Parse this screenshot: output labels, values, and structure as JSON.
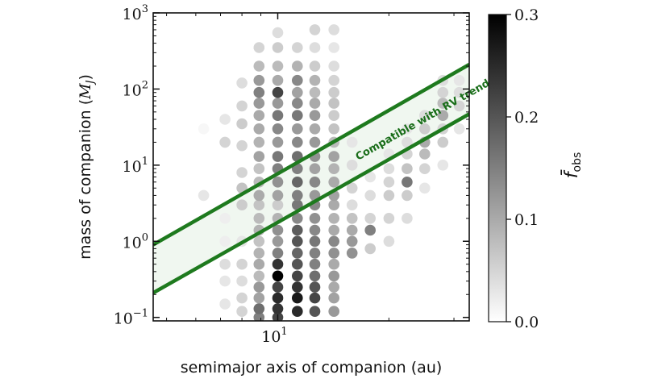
{
  "chart_data": {
    "type": "scatter",
    "title": "",
    "xlabel": "semimajor axis of companion (au)",
    "ylabel_text": "mass of companion (",
    "ylabel_symbol": "M",
    "ylabel_sub": "J",
    "ylabel_close": ")",
    "xscale": "log",
    "yscale": "log",
    "xlim": [
      4.6,
      33
    ],
    "ylim": [
      0.09,
      1000
    ],
    "x_ticks": [
      {
        "value": 10,
        "base": "10",
        "exp": "1"
      }
    ],
    "y_ticks": [
      {
        "value": 0.1,
        "base": "10",
        "exp": "−1"
      },
      {
        "value": 1,
        "base": "10",
        "exp": "0"
      },
      {
        "value": 10,
        "base": "10",
        "exp": "1"
      },
      {
        "value": 100,
        "base": "10",
        "exp": "2"
      },
      {
        "value": 1000,
        "base": "10",
        "exp": "3"
      }
    ],
    "colorbar": {
      "label": "f̄",
      "label_sub": "obs",
      "range": [
        0.0,
        0.3
      ],
      "ticks": [
        "0.0",
        "0.1",
        "0.2",
        "0.3"
      ],
      "colors": [
        "#ffffff",
        "#000000"
      ]
    },
    "annotation": {
      "text": "Compatible with RV trend",
      "color": "#1a6e1a",
      "anchor_x": 16.5,
      "anchor_y": 11.5
    },
    "band": {
      "color": "#1e7a1e",
      "lower_line": [
        [
          4.6,
          0.21
        ],
        [
          33,
          47
        ]
      ],
      "upper_line": [
        [
          4.6,
          0.9
        ],
        [
          33,
          210
        ]
      ]
    },
    "columns": [
      {
        "x": 6.3,
        "values": [
          [
            30,
            0.01
          ],
          [
            4,
            0.03
          ]
        ]
      },
      {
        "x": 7.2,
        "values": [
          [
            0.15,
            0.03
          ],
          [
            0.3,
            0.03
          ],
          [
            0.5,
            0.04
          ],
          [
            1,
            0.02
          ],
          [
            2,
            0.02
          ],
          [
            20,
            0.05
          ],
          [
            40,
            0.03
          ]
        ]
      },
      {
        "x": 8.0,
        "values": [
          [
            0.12,
            0.05
          ],
          [
            0.18,
            0.05
          ],
          [
            0.3,
            0.04
          ],
          [
            0.5,
            0.05
          ],
          [
            1,
            0.03
          ],
          [
            3,
            0.06
          ],
          [
            5,
            0.07
          ],
          [
            8,
            0.05
          ],
          [
            18,
            0.05
          ],
          [
            35,
            0.06
          ],
          [
            60,
            0.05
          ],
          [
            120,
            0.04
          ]
        ]
      },
      {
        "x": 8.9,
        "values": [
          [
            0.1,
            0.15
          ],
          [
            0.13,
            0.17
          ],
          [
            0.18,
            0.11
          ],
          [
            0.25,
            0.12
          ],
          [
            0.35,
            0.08
          ],
          [
            0.5,
            0.1
          ],
          [
            0.7,
            0.09
          ],
          [
            1,
            0.07
          ],
          [
            1.4,
            0.09
          ],
          [
            2,
            0.08
          ],
          [
            3,
            0.07
          ],
          [
            4,
            0.1
          ],
          [
            6,
            0.08
          ],
          [
            9,
            0.07
          ],
          [
            13,
            0.11
          ],
          [
            20,
            0.09
          ],
          [
            30,
            0.1
          ],
          [
            45,
            0.1
          ],
          [
            65,
            0.12
          ],
          [
            90,
            0.15
          ],
          [
            130,
            0.12
          ],
          [
            200,
            0.08
          ],
          [
            350,
            0.05
          ]
        ]
      },
      {
        "x": 10.0,
        "values": [
          [
            0.1,
            0.22
          ],
          [
            0.13,
            0.24
          ],
          [
            0.18,
            0.25
          ],
          [
            0.25,
            0.22
          ],
          [
            0.35,
            0.3
          ],
          [
            0.5,
            0.24
          ],
          [
            0.7,
            0.15
          ],
          [
            1,
            0.12
          ],
          [
            1.4,
            0.13
          ],
          [
            2,
            0.09
          ],
          [
            3,
            0.06
          ],
          [
            4,
            0.11
          ],
          [
            6,
            0.13
          ],
          [
            9,
            0.15
          ],
          [
            13,
            0.16
          ],
          [
            20,
            0.12
          ],
          [
            30,
            0.14
          ],
          [
            45,
            0.16
          ],
          [
            65,
            0.12
          ],
          [
            90,
            0.22
          ],
          [
            130,
            0.1
          ],
          [
            200,
            0.08
          ],
          [
            350,
            0.06
          ],
          [
            550,
            0.04
          ]
        ]
      },
      {
        "x": 11.3,
        "values": [
          [
            0.12,
            0.25
          ],
          [
            0.18,
            0.27
          ],
          [
            0.25,
            0.24
          ],
          [
            0.35,
            0.22
          ],
          [
            0.5,
            0.2
          ],
          [
            0.7,
            0.18
          ],
          [
            1,
            0.2
          ],
          [
            1.4,
            0.19
          ],
          [
            2,
            0.14
          ],
          [
            3,
            0.16
          ],
          [
            4,
            0.15
          ],
          [
            6,
            0.18
          ],
          [
            9,
            0.15
          ],
          [
            13,
            0.17
          ],
          [
            20,
            0.14
          ],
          [
            30,
            0.12
          ],
          [
            45,
            0.16
          ],
          [
            65,
            0.14
          ],
          [
            90,
            0.11
          ],
          [
            130,
            0.14
          ],
          [
            200,
            0.09
          ],
          [
            350,
            0.05
          ]
        ]
      },
      {
        "x": 12.6,
        "values": [
          [
            0.12,
            0.2
          ],
          [
            0.18,
            0.22
          ],
          [
            0.25,
            0.2
          ],
          [
            0.35,
            0.17
          ],
          [
            0.5,
            0.15
          ],
          [
            0.7,
            0.15
          ],
          [
            1,
            0.16
          ],
          [
            1.4,
            0.14
          ],
          [
            2,
            0.13
          ],
          [
            3,
            0.14
          ],
          [
            4,
            0.12
          ],
          [
            6,
            0.14
          ],
          [
            9,
            0.11
          ],
          [
            13,
            0.13
          ],
          [
            20,
            0.12
          ],
          [
            30,
            0.1
          ],
          [
            45,
            0.12
          ],
          [
            65,
            0.1
          ],
          [
            90,
            0.08
          ],
          [
            130,
            0.09
          ],
          [
            200,
            0.06
          ],
          [
            350,
            0.04
          ],
          [
            600,
            0.05
          ]
        ]
      },
      {
        "x": 14.2,
        "values": [
          [
            0.12,
            0.12
          ],
          [
            0.18,
            0.11
          ],
          [
            0.25,
            0.1
          ],
          [
            0.35,
            0.12
          ],
          [
            0.5,
            0.1
          ],
          [
            0.7,
            0.13
          ],
          [
            1,
            0.14
          ],
          [
            1.4,
            0.1
          ],
          [
            2,
            0.09
          ],
          [
            3,
            0.1
          ],
          [
            4,
            0.11
          ],
          [
            6,
            0.1
          ],
          [
            9,
            0.09
          ],
          [
            13,
            0.11
          ],
          [
            20,
            0.08
          ],
          [
            30,
            0.07
          ],
          [
            45,
            0.06
          ],
          [
            65,
            0.07
          ],
          [
            90,
            0.06
          ],
          [
            130,
            0.05
          ],
          [
            200,
            0.04
          ],
          [
            350,
            0.03
          ],
          [
            600,
            0.04
          ]
        ]
      },
      {
        "x": 15.9,
        "values": [
          [
            0.7,
            0.13
          ],
          [
            1,
            0.12
          ],
          [
            1.4,
            0.1
          ],
          [
            2,
            0.07
          ],
          [
            3,
            0.04
          ],
          [
            5,
            0.05
          ],
          [
            10,
            0.04
          ],
          [
            20,
            0.03
          ]
        ]
      },
      {
        "x": 17.8,
        "values": [
          [
            0.8,
            0.06
          ],
          [
            1.4,
            0.15
          ],
          [
            2,
            0.05
          ],
          [
            4,
            0.04
          ],
          [
            7,
            0.03
          ]
        ]
      },
      {
        "x": 20.0,
        "values": [
          [
            1,
            0.04
          ],
          [
            2,
            0.05
          ],
          [
            4,
            0.06
          ],
          [
            6,
            0.05
          ],
          [
            9,
            0.04
          ],
          [
            14,
            0.03
          ]
        ]
      },
      {
        "x": 22.4,
        "values": [
          [
            2,
            0.04
          ],
          [
            4,
            0.06
          ],
          [
            6,
            0.16
          ],
          [
            9,
            0.07
          ],
          [
            14,
            0.05
          ],
          [
            20,
            0.04
          ],
          [
            30,
            0.03
          ]
        ]
      },
      {
        "x": 25.0,
        "values": [
          [
            5,
            0.03
          ],
          [
            9,
            0.05
          ],
          [
            14,
            0.08
          ],
          [
            20,
            0.1
          ],
          [
            30,
            0.06
          ],
          [
            45,
            0.04
          ]
        ]
      },
      {
        "x": 28.0,
        "values": [
          [
            10,
            0.03
          ],
          [
            20,
            0.06
          ],
          [
            30,
            0.05
          ],
          [
            45,
            0.1
          ],
          [
            65,
            0.08
          ],
          [
            90,
            0.05
          ],
          [
            130,
            0.04
          ]
        ]
      },
      {
        "x": 31.0,
        "values": [
          [
            30,
            0.03
          ],
          [
            60,
            0.05
          ],
          [
            90,
            0.04
          ],
          [
            130,
            0.03
          ]
        ]
      }
    ]
  }
}
